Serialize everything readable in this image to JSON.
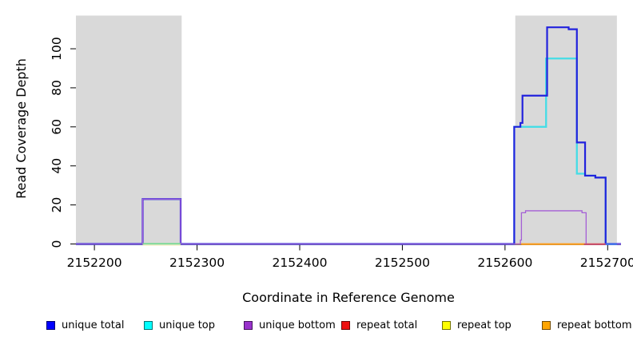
{
  "chart_data": {
    "type": "line",
    "step_mode": "after",
    "title": "",
    "xlabel": "Coordinate in Reference Genome",
    "ylabel": "Read Coverage Depth",
    "xlim": [
      2152182,
      2152713
    ],
    "ylim": [
      0,
      117
    ],
    "x_ticks": [
      2152200,
      2152300,
      2152400,
      2152500,
      2152600,
      2152700
    ],
    "y_ticks": [
      0,
      20,
      40,
      60,
      80,
      100
    ],
    "grid": false,
    "shaded_regions": [
      {
        "name": "annotated-region-left",
        "start": 2152182,
        "end": 2152285,
        "color": "#d9d9d9"
      },
      {
        "name": "annotated-region-right",
        "start": 2152610,
        "end": 2152709,
        "color": "#d9d9d9"
      }
    ],
    "series": [
      {
        "name": "unique total",
        "color": "#2222dd",
        "stroke_width": 2.2,
        "steps": [
          [
            2152182,
            0
          ],
          [
            2152247,
            23
          ],
          [
            2152284,
            0
          ],
          [
            2152609,
            60
          ],
          [
            2152615,
            62
          ],
          [
            2152617,
            76
          ],
          [
            2152641,
            111
          ],
          [
            2152662,
            110
          ],
          [
            2152670,
            52
          ],
          [
            2152678,
            35
          ],
          [
            2152688,
            34
          ],
          [
            2152698,
            0
          ],
          [
            2152713,
            0
          ]
        ]
      },
      {
        "name": "unique top",
        "color": "#45dde6",
        "stroke_width": 2.3,
        "steps": [
          [
            2152182,
            0
          ],
          [
            2152609,
            60
          ],
          [
            2152640,
            95
          ],
          [
            2152670,
            36
          ],
          [
            2152678,
            35
          ],
          [
            2152688,
            34
          ],
          [
            2152698,
            0
          ],
          [
            2152713,
            0
          ]
        ]
      },
      {
        "name": "unique bottom",
        "color": "#a45fd6",
        "stroke_width": 1.3,
        "steps": [
          [
            2152182,
            0
          ],
          [
            2152247,
            23
          ],
          [
            2152284,
            0
          ],
          [
            2152615,
            2
          ],
          [
            2152616,
            16
          ],
          [
            2152620,
            17
          ],
          [
            2152675,
            16
          ],
          [
            2152679,
            0
          ],
          [
            2152713,
            0
          ]
        ]
      },
      {
        "name": "repeat total",
        "color": "#dd2222",
        "stroke_width": 1.3,
        "steps": [
          [
            2152182,
            0
          ],
          [
            2152713,
            0
          ]
        ]
      },
      {
        "name": "repeat top",
        "color": "#efe9b0",
        "stroke_width": 1.2,
        "steps": [
          [
            2152182,
            0
          ],
          [
            2152713,
            0
          ]
        ]
      },
      {
        "name": "repeat bottom",
        "color": "#ff9f1c",
        "stroke_width": 1.6,
        "steps": [
          [
            2152182,
            0
          ],
          [
            2152713,
            0
          ]
        ]
      }
    ],
    "draw_order": [
      "repeat total",
      "repeat top",
      "repeat bottom",
      "unique top",
      "unique total",
      "unique bottom"
    ],
    "baseline_overlays": [
      {
        "name": "repeat-top-at-zero",
        "color": "#efe9b0",
        "from": 2152247,
        "to": 2152284,
        "dy": 1.3,
        "width": 1.4
      },
      {
        "name": "unique-top-repeat-top-blend",
        "color": "#8cd98c",
        "from": 2152247,
        "to": 2152284,
        "dy": -0.5,
        "width": 1.4
      },
      {
        "name": "repeat-bottom-at-zero",
        "color": "#ff9f1c",
        "from": 2152616,
        "to": 2152677,
        "dy": 0.3,
        "width": 2.0
      },
      {
        "name": "repeat-total-at-zero",
        "color": "#d24a6a",
        "from": 2152677,
        "to": 2152698,
        "dy": 0.3,
        "width": 1.8
      },
      {
        "name": "unique-total-at-zero",
        "color": "#4677f0",
        "from": 2152698,
        "to": 2152709,
        "dy": 0.3,
        "width": 2.0
      }
    ],
    "legend": {
      "position": "bottom",
      "entries": [
        {
          "label": "unique total",
          "color": "#0000ff"
        },
        {
          "label": "unique top",
          "color": "#00ffff"
        },
        {
          "label": "unique bottom",
          "color": "#9932cc"
        },
        {
          "label": "repeat total",
          "color": "#ee1111"
        },
        {
          "label": "repeat top",
          "color": "#ffff00"
        },
        {
          "label": "repeat bottom",
          "color": "#ffa500"
        }
      ]
    },
    "axis_color": "#000000"
  }
}
